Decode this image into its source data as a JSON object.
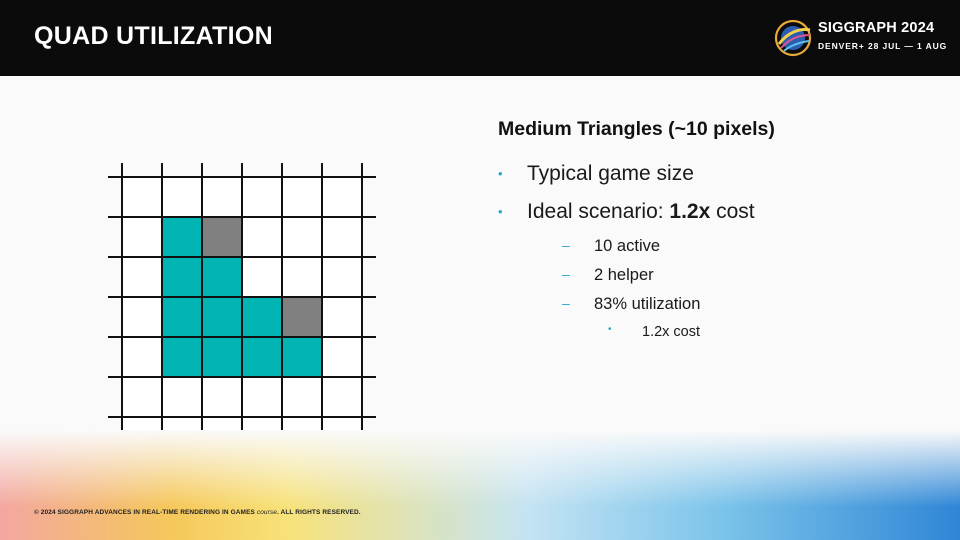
{
  "slide": {
    "title": "QUAD UTILIZATION",
    "logo": {
      "name": "SIGGRAPH 2024",
      "subtitle": "DENVER+ 28 JUL — 1 AUG"
    },
    "heading": "Medium Triangles (~10 pixels)",
    "bullets": [
      {
        "prefix": "Typical game size",
        "bold": "",
        "suffix": ""
      },
      {
        "prefix": "Ideal scenario: ",
        "bold": "1.2x",
        "suffix": " cost"
      }
    ],
    "sub_bullets": [
      "10 active",
      "2 helper",
      "83% utilization"
    ],
    "sub_sub_bullets": [
      "1.2x cost"
    ],
    "footer": {
      "main": "© 2024 SIGGRAPH ADVANCES IN REAL-TIME RENDERING IN GAMES ",
      "italic": "course",
      "end": ". ALL RIGHTS RESERVED."
    }
  },
  "pixel_grid": {
    "rows": 7,
    "cols": 6,
    "colors": {
      "active": "#00b5b3",
      "helper": "#808080",
      "empty": "#ffffff",
      "line": "#111111"
    },
    "active_cells": [
      [
        1,
        1
      ],
      [
        2,
        1
      ],
      [
        2,
        2
      ],
      [
        3,
        1
      ],
      [
        3,
        2
      ],
      [
        3,
        3
      ],
      [
        4,
        1
      ],
      [
        4,
        2
      ],
      [
        4,
        3
      ],
      [
        4,
        4
      ]
    ],
    "helper_cells": [
      [
        1,
        2
      ],
      [
        3,
        4
      ]
    ]
  }
}
